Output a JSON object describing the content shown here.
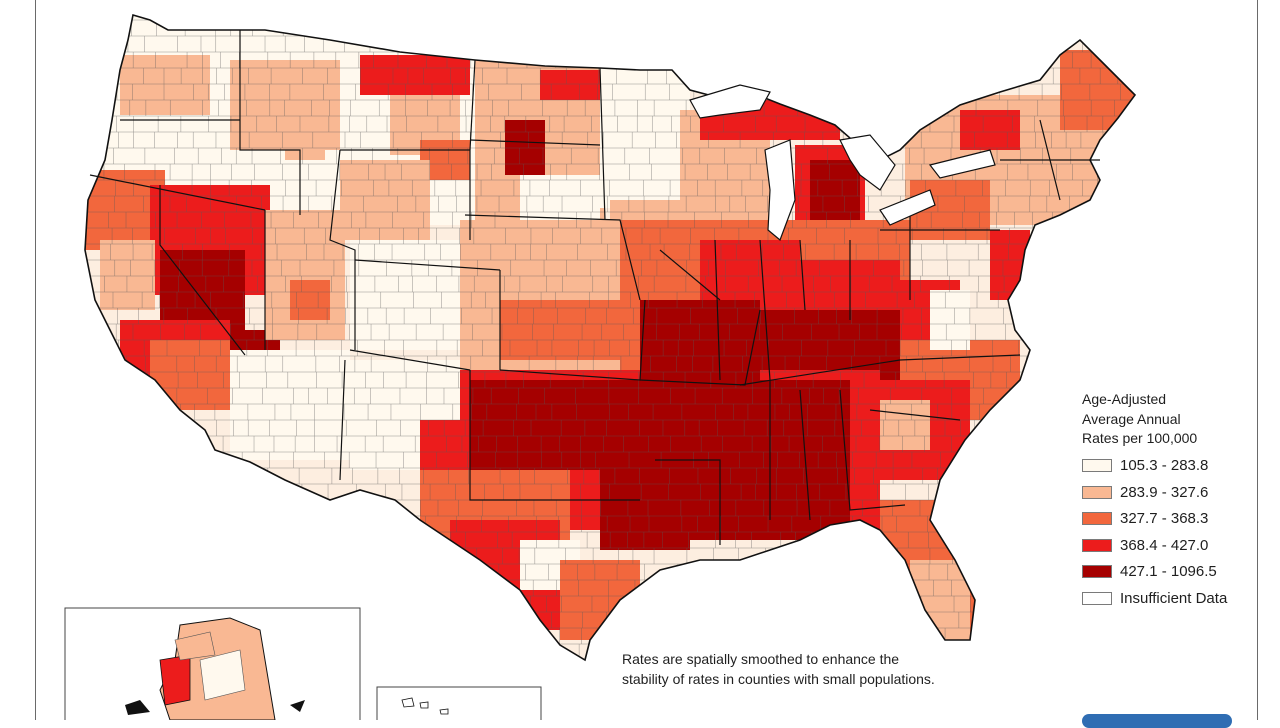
{
  "legend": {
    "title_lines": [
      "Age-Adjusted",
      "Average Annual",
      "Rates per 100,000"
    ],
    "items": [
      {
        "label": "105.3 - 283.8",
        "color": "#fff9ee"
      },
      {
        "label": "283.9 - 327.6",
        "color": "#f9b893"
      },
      {
        "label": "327.7 - 368.3",
        "color": "#f2673d"
      },
      {
        "label": "368.4 - 427.0",
        "color": "#ec1c1c"
      },
      {
        "label": "427.1 - 1096.5",
        "color": "#a50000"
      },
      {
        "label": "Insufficient Data",
        "color": "#ffffff"
      }
    ]
  },
  "footnote": "Rates are spatially smoothed to enhance the stability of rates in counties with small populations.",
  "colors": {
    "background": "#ffffff",
    "state_border": "#111111",
    "county_border": "#555555"
  }
}
